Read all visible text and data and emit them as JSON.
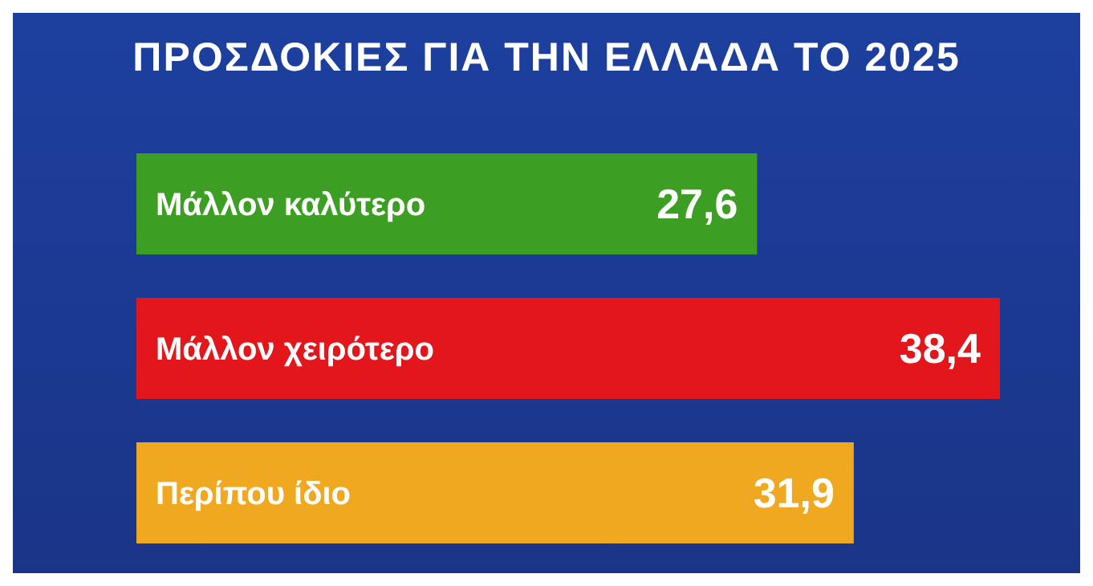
{
  "chart_data": {
    "type": "bar",
    "title": "ΠΡΟΣΔΟΚΙΕΣ ΓΙΑ ΤΗΝ ΕΛΛΑΔΑ ΤΟ 2025",
    "orientation": "horizontal",
    "categories": [
      "Μάλλον καλύτερο",
      "Μάλλον χειρότερο",
      "Περίπου ίδιο"
    ],
    "values": [
      27.6,
      38.4,
      31.9
    ],
    "colors": [
      "#3c9e22",
      "#e3161b",
      "#efa81f"
    ],
    "value_labels": [
      "27,6",
      "38,4",
      "31,9"
    ]
  }
}
